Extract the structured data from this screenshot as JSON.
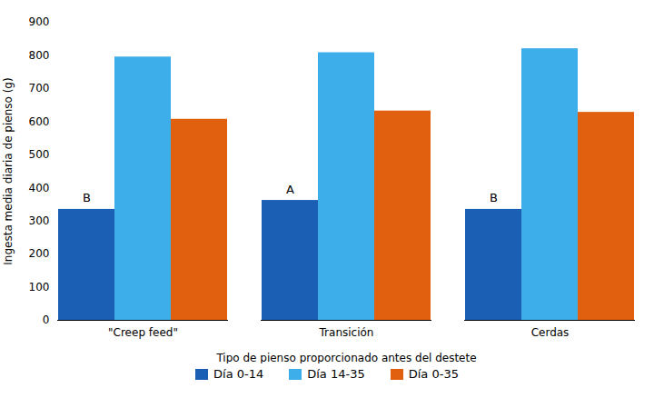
{
  "chart_data": {
    "type": "bar",
    "categories": [
      "\"Creep feed\"",
      "Transición",
      "Cerdas"
    ],
    "series": [
      {
        "name": "Día 0-14",
        "values": [
          335,
          362,
          335
        ],
        "color": "#1a5fb4"
      },
      {
        "name": "Día 14-35",
        "values": [
          795,
          808,
          820
        ],
        "color": "#3daee9"
      },
      {
        "name": "Día 0-35",
        "values": [
          607,
          632,
          628
        ],
        "color": "#e06010"
      }
    ],
    "annotations": [
      {
        "category": "\"Creep feed\"",
        "series": "Día 0-14",
        "text": "B"
      },
      {
        "category": "Transición",
        "series": "Día 0-14",
        "text": "A"
      },
      {
        "category": "Cerdas",
        "series": "Día 0-14",
        "text": "B"
      }
    ],
    "xlabel": "Tipo de pienso proporcionado antes del destete",
    "ylabel": "Ingesta media diaria de pienso (g)",
    "ylim": [
      0,
      900
    ],
    "yticks": [
      0,
      100,
      200,
      300,
      400,
      500,
      600,
      700,
      800,
      900
    ],
    "grid": false,
    "legend": "bottom"
  }
}
